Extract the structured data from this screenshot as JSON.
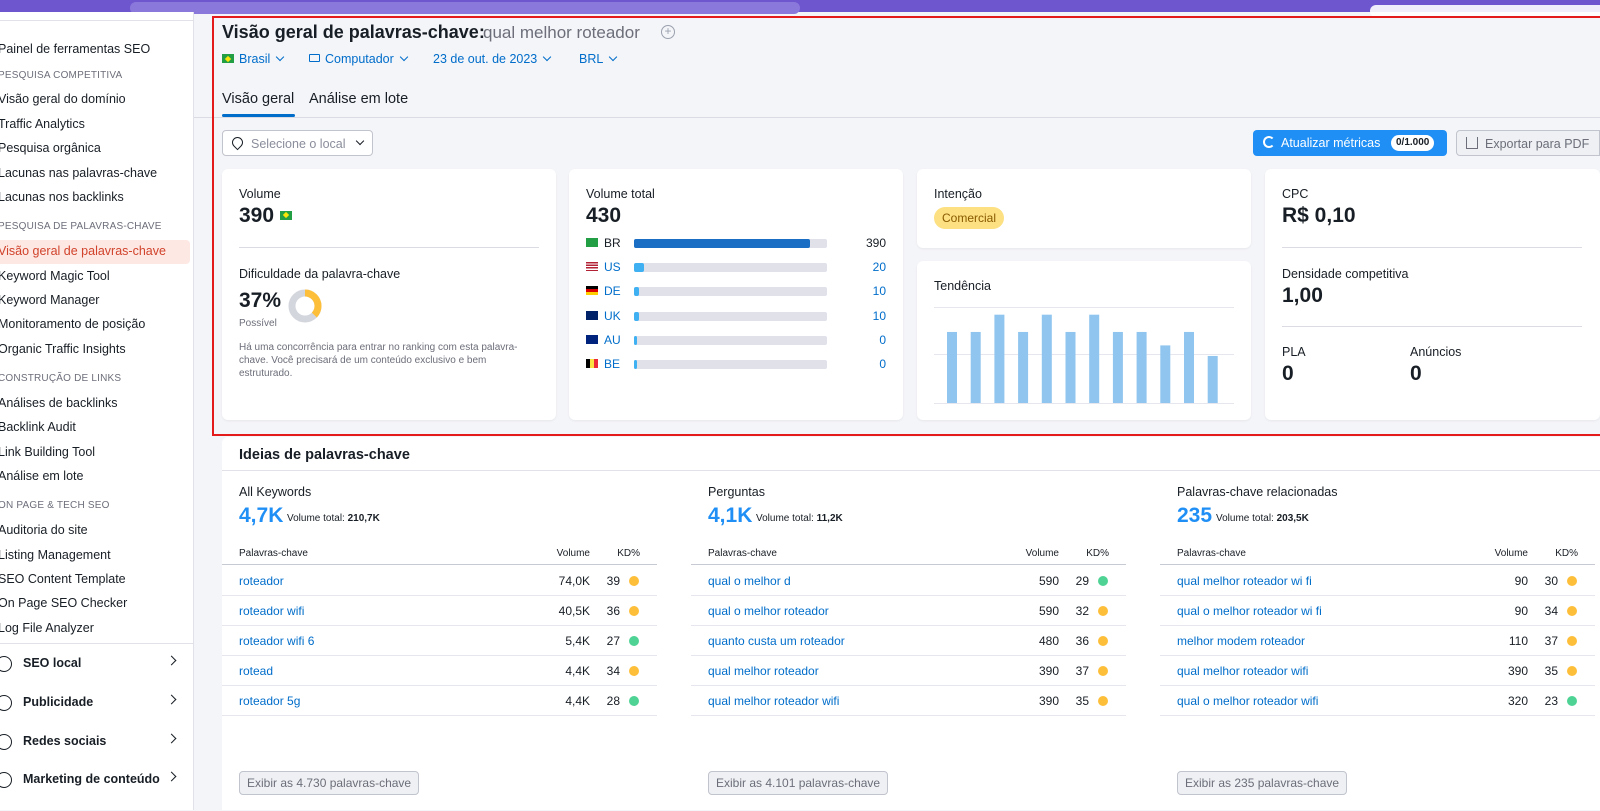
{
  "colors": {
    "accent": "#1f8ff5",
    "link": "#006dca",
    "active_bg": "#fde8e4",
    "active_text": "#d1432b",
    "kd_yellow": "#fdbf3a",
    "kd_green": "#4fd395",
    "highlight_box": "#e41b1b"
  },
  "sidebar": {
    "items": [
      {
        "label": "Painel de ferramentas SEO",
        "type": "item"
      },
      {
        "label": "PESQUISA COMPETITIVA",
        "type": "head"
      },
      {
        "label": "Visão geral do domínio",
        "type": "item"
      },
      {
        "label": "Traffic Analytics",
        "type": "item"
      },
      {
        "label": "Pesquisa orgânica",
        "type": "item"
      },
      {
        "label": "Lacunas nas palavras-chave",
        "type": "item"
      },
      {
        "label": "Lacunas nos backlinks",
        "type": "item"
      },
      {
        "label": "PESQUISA DE PALAVRAS-CHAVE",
        "type": "head"
      },
      {
        "label": "Visão geral de palavras-chave",
        "type": "active"
      },
      {
        "label": "Keyword Magic Tool",
        "type": "item"
      },
      {
        "label": "Keyword Manager",
        "type": "item"
      },
      {
        "label": "Monitoramento de posição",
        "type": "item"
      },
      {
        "label": "Organic Traffic Insights",
        "type": "item"
      },
      {
        "label": "CONSTRUÇÃO DE LINKS",
        "type": "head"
      },
      {
        "label": "Análises de backlinks",
        "type": "item"
      },
      {
        "label": "Backlink Audit",
        "type": "item"
      },
      {
        "label": "Link Building Tool",
        "type": "item"
      },
      {
        "label": "Análise em lote",
        "type": "item"
      },
      {
        "label": "ON PAGE & TECH SEO",
        "type": "head"
      },
      {
        "label": "Auditoria do site",
        "type": "item"
      },
      {
        "label": "Listing Management",
        "type": "item"
      },
      {
        "label": "SEO Content Template",
        "type": "item"
      },
      {
        "label": "On Page SEO Checker",
        "type": "item"
      },
      {
        "label": "Log File Analyzer",
        "type": "item"
      }
    ],
    "groups": [
      {
        "label": "SEO local",
        "icon": "location-pin-icon"
      },
      {
        "label": "Publicidade",
        "icon": "target-icon"
      },
      {
        "label": "Redes sociais",
        "icon": "thumbs-up-icon"
      },
      {
        "label": "Marketing de conteúdo",
        "icon": "pencil-icon"
      }
    ]
  },
  "header": {
    "title": "Visão geral de palavras-chave:",
    "keyword": "qual melhor roteador",
    "plus": "+",
    "filters": {
      "country": "Brasil",
      "device": "Computador",
      "date": "23 de out. de 2023",
      "currency": "BRL"
    },
    "tabs": [
      {
        "label": "Visão geral",
        "active": true
      },
      {
        "label": "Análise em lote",
        "active": false
      }
    ]
  },
  "toolbar": {
    "location_placeholder": "Selecione o local",
    "update_label": "Atualizar métricas",
    "update_badge": "0/1.000",
    "export_label": "Exportar para PDF"
  },
  "volume_card": {
    "label": "Volume",
    "value": "390",
    "kd_label": "Dificuldade da palavra-chave",
    "kd_value": "37%",
    "kd_fraction": 0.37,
    "kd_status": "Possível",
    "kd_desc": "Há uma concorrência para entrar no ranking com esta palavra-chave. Você precisará de um conteúdo exclusivo e bem estruturado."
  },
  "total_card": {
    "label": "Volume total",
    "value": "430",
    "countries": [
      {
        "code": "BR",
        "value": "390",
        "fraction": 0.91
      },
      {
        "code": "US",
        "value": "20",
        "fraction": 0.05
      },
      {
        "code": "DE",
        "value": "10",
        "fraction": 0.025
      },
      {
        "code": "UK",
        "value": "10",
        "fraction": 0.025
      },
      {
        "code": "AU",
        "value": "0",
        "fraction": 0.012
      },
      {
        "code": "BE",
        "value": "0",
        "fraction": 0.012
      }
    ]
  },
  "intent_card": {
    "label": "Intenção",
    "value": "Comercial"
  },
  "trend_card": {
    "label": "Tendência",
    "values": [
      0.74,
      0.74,
      0.92,
      0.74,
      0.92,
      0.74,
      0.92,
      0.74,
      0.74,
      0.6,
      0.74,
      0.49
    ]
  },
  "cpc_card": {
    "label": "CPC",
    "value": "R$ 0,10",
    "density_label": "Densidade competitiva",
    "density_value": "1,00",
    "pla_label": "PLA",
    "pla_value": "0",
    "ads_label": "Anúncios",
    "ads_value": "0"
  },
  "ideas": {
    "title": "Ideias de palavras-chave",
    "col_kw": "Palavras-chave",
    "col_vol": "Volume",
    "col_kd": "KD%",
    "total_label": "Volume total:",
    "columns": [
      {
        "title": "All Keywords",
        "count": "4,7K",
        "total": "210,7K",
        "rows": [
          {
            "kw": "roteador",
            "vol": "74,0K",
            "kd": "39",
            "level": "yellow"
          },
          {
            "kw": "roteador wifi",
            "vol": "40,5K",
            "kd": "36",
            "level": "yellow"
          },
          {
            "kw": "roteador wifi 6",
            "vol": "5,4K",
            "kd": "27",
            "level": "green"
          },
          {
            "kw": "rotead",
            "vol": "4,4K",
            "kd": "34",
            "level": "yellow"
          },
          {
            "kw": "roteador 5g",
            "vol": "4,4K",
            "kd": "28",
            "level": "green"
          }
        ],
        "button": "Exibir as 4.730 palavras-chave"
      },
      {
        "title": "Perguntas",
        "count": "4,1K",
        "total": "11,2K",
        "rows": [
          {
            "kw": "qual o melhor d",
            "vol": "590",
            "kd": "29",
            "level": "green"
          },
          {
            "kw": "qual o melhor roteador",
            "vol": "590",
            "kd": "32",
            "level": "yellow"
          },
          {
            "kw": "quanto custa um roteador",
            "vol": "480",
            "kd": "36",
            "level": "yellow"
          },
          {
            "kw": "qual melhor roteador",
            "vol": "390",
            "kd": "37",
            "level": "yellow"
          },
          {
            "kw": "qual melhor roteador wifi",
            "vol": "390",
            "kd": "35",
            "level": "yellow"
          }
        ],
        "button": "Exibir as 4.101 palavras-chave"
      },
      {
        "title": "Palavras-chave relacionadas",
        "count": "235",
        "total": "203,5K",
        "rows": [
          {
            "kw": "qual melhor roteador wi fi",
            "vol": "90",
            "kd": "30",
            "level": "yellow"
          },
          {
            "kw": "qual o melhor roteador wi fi",
            "vol": "90",
            "kd": "34",
            "level": "yellow"
          },
          {
            "kw": "melhor modem roteador",
            "vol": "110",
            "kd": "37",
            "level": "yellow"
          },
          {
            "kw": "qual melhor roteador wifi",
            "vol": "390",
            "kd": "35",
            "level": "yellow"
          },
          {
            "kw": "qual o melhor roteador wifi",
            "vol": "320",
            "kd": "23",
            "level": "green"
          }
        ],
        "button": "Exibir as 235 palavras-chave"
      }
    ]
  }
}
